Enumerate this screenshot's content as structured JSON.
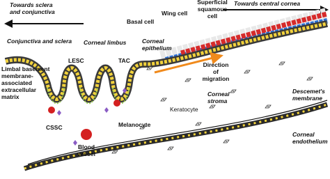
{
  "labels": {
    "towards_sclera": [
      "Towards sclera",
      "and conjunctiva"
    ],
    "towards_cornea": [
      "Towards central cornea"
    ],
    "superficial": [
      "Superficial",
      "squamous",
      "cell"
    ],
    "wing": [
      "Wing cell"
    ],
    "basal": [
      "Basal cell"
    ],
    "conjunctiva": [
      "Conjunctiva and sclera"
    ],
    "limbus": [
      "Corneal limbus"
    ],
    "epithelium": [
      "Corneal",
      "epithelium"
    ],
    "migration": [
      "Direction",
      "of",
      "migration"
    ],
    "lesc": [
      "LESC"
    ],
    "tac": [
      "TAC"
    ],
    "matrix": [
      "Limbal basement",
      "membrane-",
      "associated",
      "extracellular",
      "matrix"
    ],
    "cssc": [
      "CSSC"
    ],
    "vessel": [
      "Blood",
      "vessel"
    ],
    "melanocyte": [
      "Melanocyte"
    ],
    "keratocyte": [
      "Keratocyte"
    ],
    "stroma": [
      "Corneal",
      "stroma"
    ],
    "descemet": [
      "Descemet's",
      "membrane"
    ],
    "endothelium": [
      "Corneal",
      "endothelium"
    ]
  }
}
